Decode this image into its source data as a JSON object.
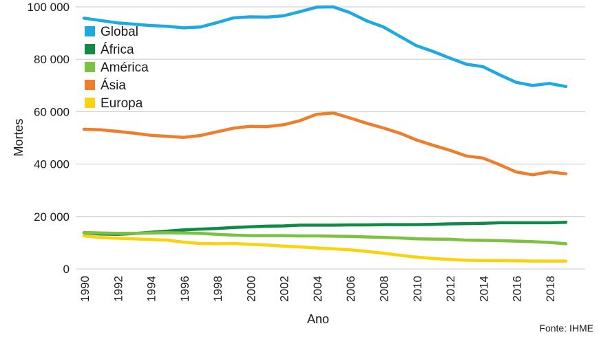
{
  "chart_data": {
    "type": "line",
    "title": "",
    "xlabel": "Ano",
    "ylabel": "Mortes",
    "xlim": [
      1990,
      2019
    ],
    "ylim": [
      0,
      100000
    ],
    "x_ticks": [
      1990,
      1992,
      1994,
      1996,
      1998,
      2000,
      2002,
      2004,
      2006,
      2008,
      2010,
      2012,
      2014,
      2016,
      2018
    ],
    "y_ticks": [
      0,
      20000,
      40000,
      60000,
      80000,
      100000
    ],
    "y_tick_labels": [
      "0",
      "20 000",
      "40 000",
      "60 000",
      "80 000",
      "100 000"
    ],
    "x_tick_labels": [
      "1990",
      "1992",
      "1994",
      "1996",
      "1998",
      "2000",
      "2002",
      "2004",
      "2006",
      "2008",
      "2010",
      "2012",
      "2014",
      "2016",
      "2018"
    ],
    "grid": "horizontal",
    "legend_position": "top-left",
    "source": "Fonte: IHME",
    "x": [
      1990,
      1991,
      1992,
      1993,
      1994,
      1995,
      1996,
      1997,
      1998,
      1999,
      2000,
      2001,
      2002,
      2003,
      2004,
      2005,
      2006,
      2007,
      2008,
      2009,
      2010,
      2011,
      2012,
      2013,
      2014,
      2015,
      2016,
      2017,
      2018,
      2019
    ],
    "series": [
      {
        "name": "Global",
        "color": "#1fa9e3",
        "values": [
          95700,
          94800,
          93900,
          93400,
          92900,
          92600,
          92000,
          92300,
          94000,
          95800,
          96200,
          96100,
          96600,
          98200,
          99900,
          100000,
          97800,
          94700,
          92400,
          88800,
          85200,
          83000,
          80500,
          78100,
          77200,
          74100,
          71200,
          70000,
          70800,
          69600
        ]
      },
      {
        "name": "África",
        "color": "#118a47",
        "values": [
          13800,
          13300,
          13200,
          13500,
          14000,
          14400,
          14900,
          15200,
          15400,
          15800,
          16100,
          16300,
          16400,
          16700,
          16700,
          16700,
          16800,
          16800,
          16900,
          16900,
          16900,
          17000,
          17200,
          17300,
          17400,
          17600,
          17600,
          17600,
          17600,
          17800
        ]
      },
      {
        "name": "América",
        "color": "#7cc242",
        "values": [
          13900,
          13700,
          13600,
          13600,
          13700,
          13800,
          13700,
          13600,
          13200,
          12900,
          12700,
          12700,
          12700,
          12600,
          12600,
          12500,
          12400,
          12200,
          12000,
          11800,
          11500,
          11400,
          11300,
          11000,
          10900,
          10800,
          10600,
          10400,
          10100,
          9600
        ]
      },
      {
        "name": "Ásia",
        "color": "#ee7d2c",
        "values": [
          53300,
          53100,
          52500,
          51800,
          51000,
          50600,
          50200,
          50900,
          52300,
          53700,
          54400,
          54300,
          55000,
          56600,
          59000,
          59500,
          57600,
          55600,
          53800,
          51800,
          49200,
          47200,
          45300,
          43100,
          42300,
          39800,
          37000,
          35900,
          37000,
          36300
        ]
      },
      {
        "name": "Europa",
        "color": "#fcd20f",
        "values": [
          12600,
          12000,
          11700,
          11500,
          11200,
          11000,
          10200,
          9700,
          9600,
          9700,
          9400,
          9100,
          8700,
          8400,
          8000,
          7700,
          7300,
          6700,
          6000,
          5200,
          4500,
          4000,
          3600,
          3300,
          3200,
          3200,
          3100,
          3000,
          3000,
          3000
        ]
      }
    ]
  }
}
